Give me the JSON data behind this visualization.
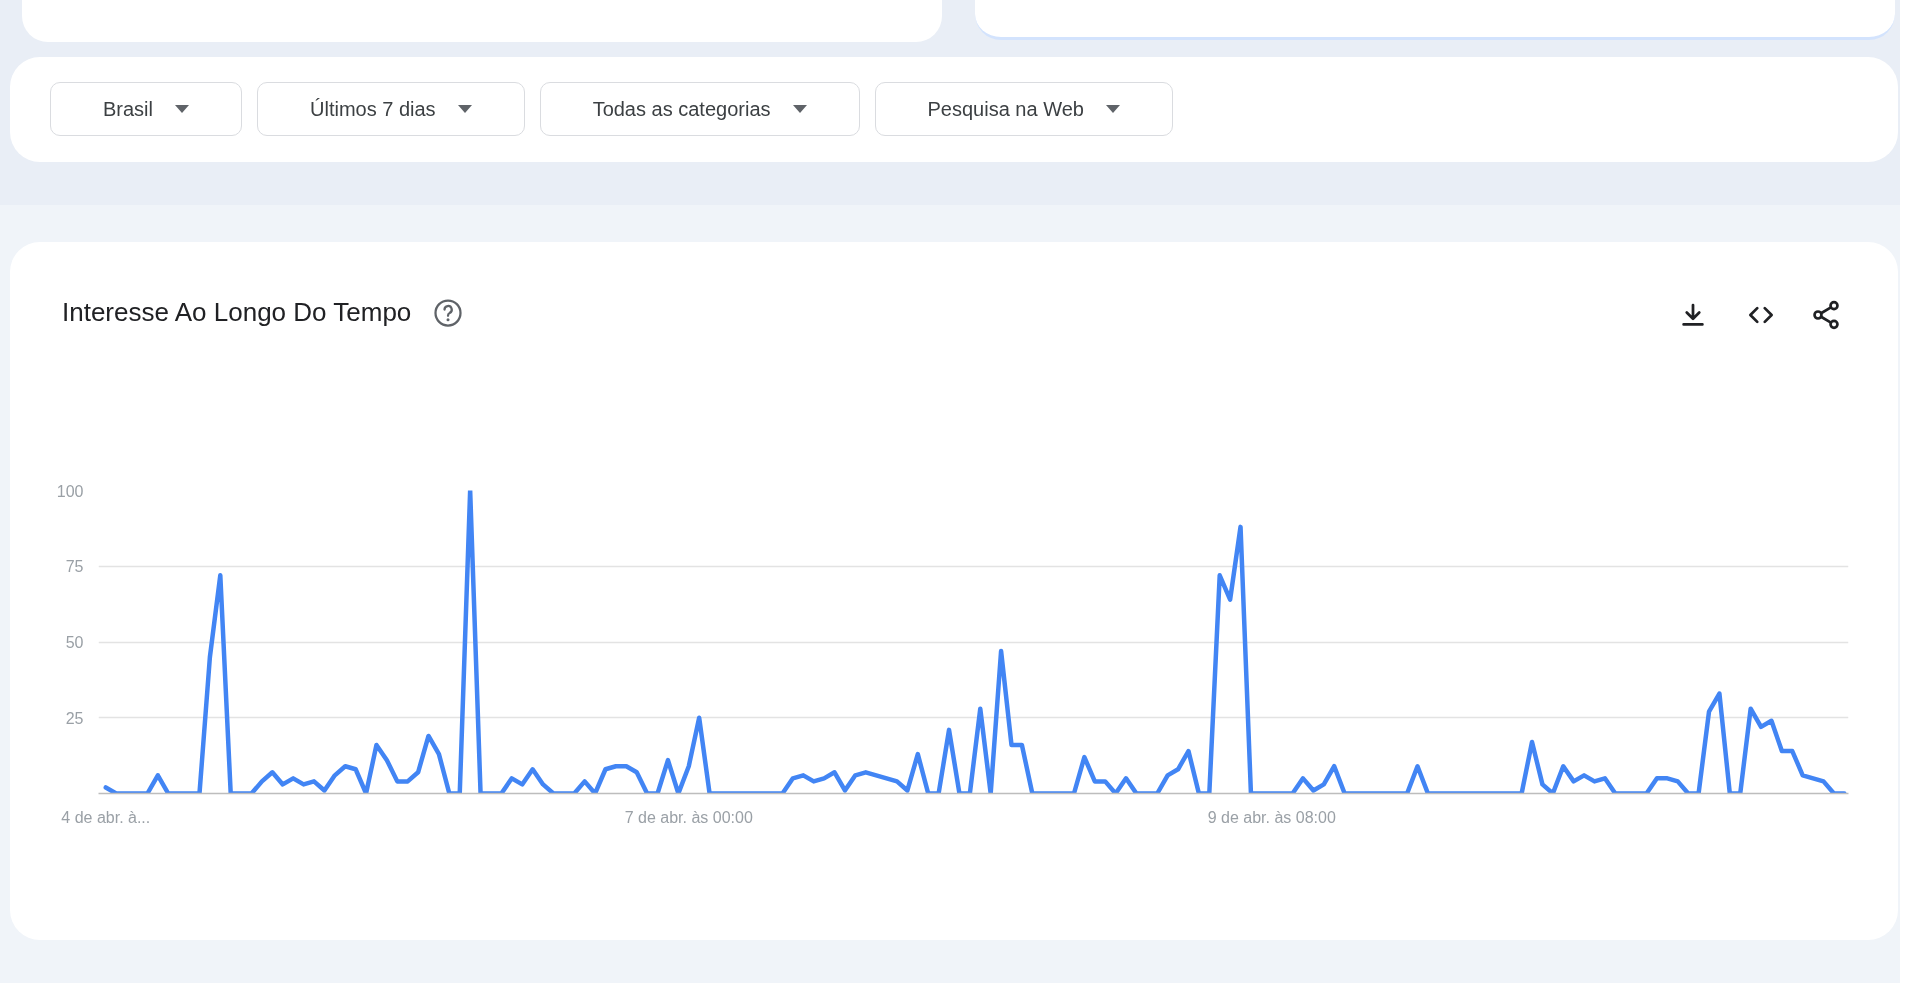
{
  "chart_data": {
    "type": "line",
    "title": "Interesse Ao Longo Do Tempo",
    "annotations": [
      "Brasil",
      "Últimos 7 dias",
      "Todas as categorias",
      "Pesquisa na Web"
    ],
    "categories": [
      "4 de abr. à...",
      null,
      null,
      null,
      null,
      null,
      null,
      null,
      null,
      null,
      null,
      null,
      null,
      null,
      null,
      null,
      null,
      null,
      null,
      null,
      null,
      null,
      null,
      null,
      null,
      null,
      null,
      null,
      null,
      null,
      null,
      null,
      null,
      null,
      null,
      null,
      null,
      null,
      null,
      null,
      null,
      null,
      null,
      null,
      null,
      null,
      null,
      null,
      null,
      null,
      null,
      null,
      null,
      null,
      null,
      null,
      "7 de abr. às 00:00",
      null,
      null,
      null,
      null,
      null,
      null,
      null,
      null,
      null,
      null,
      null,
      null,
      null,
      null,
      null,
      null,
      null,
      null,
      null,
      null,
      null,
      null,
      null,
      null,
      null,
      null,
      null,
      null,
      null,
      null,
      null,
      null,
      null,
      null,
      null,
      null,
      null,
      null,
      null,
      null,
      null,
      null,
      null,
      null,
      null,
      null,
      null,
      null,
      null,
      null,
      null,
      null,
      null,
      null,
      null,
      "9 de abr. às 08:00",
      null,
      null,
      null,
      null,
      null,
      null,
      null,
      null,
      null,
      null,
      null,
      null,
      null,
      null,
      null,
      null,
      null,
      null,
      null,
      null,
      null,
      null,
      null,
      null,
      null,
      null,
      null,
      null,
      null,
      null,
      null,
      null,
      null,
      null,
      null,
      null,
      null,
      null,
      null,
      null,
      null,
      null,
      null,
      null,
      null,
      null,
      null,
      null,
      null,
      null,
      null,
      null,
      null,
      null,
      null
    ],
    "ylim": [
      0,
      100
    ],
    "yticks": [
      25,
      50,
      75,
      100
    ],
    "grid": "y",
    "series": [
      {
        "color": "#4285f4",
        "values": [
          2,
          0,
          0,
          0,
          0,
          6,
          0,
          0,
          0,
          0,
          45,
          72,
          0,
          0,
          0,
          4,
          7,
          3,
          5,
          3,
          4,
          1,
          6,
          9,
          8,
          0,
          16,
          11,
          4,
          4,
          7,
          19,
          13,
          0,
          0,
          100,
          0,
          0,
          0,
          5,
          3,
          8,
          3,
          0,
          0,
          0,
          4,
          0,
          8,
          9,
          9,
          7,
          0,
          0,
          11,
          0,
          9,
          25,
          0,
          0,
          0,
          0,
          0,
          0,
          0,
          0,
          5,
          6,
          4,
          5,
          7,
          1,
          6,
          7,
          6,
          5,
          4,
          1,
          13,
          0,
          0,
          21,
          0,
          0,
          28,
          0,
          47,
          16,
          16,
          0,
          0,
          0,
          0,
          0,
          12,
          4,
          4,
          0,
          5,
          0,
          0,
          0,
          6,
          8,
          14,
          0,
          0,
          72,
          64,
          88,
          0,
          0,
          0,
          0,
          0,
          5,
          1,
          3,
          9,
          0,
          0,
          0,
          0,
          0,
          0,
          0,
          9,
          0,
          0,
          0,
          0,
          0,
          0,
          0,
          0,
          0,
          0,
          17,
          3,
          0,
          9,
          4,
          6,
          4,
          5,
          0,
          0,
          0,
          0,
          5,
          5,
          4,
          0,
          0,
          27,
          33,
          0,
          0,
          28,
          22,
          24,
          14,
          14,
          6,
          5,
          4,
          0,
          0
        ]
      }
    ]
  }
}
